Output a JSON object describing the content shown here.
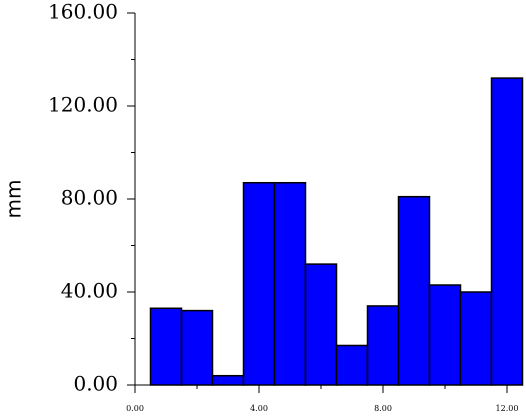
{
  "chart_data": {
    "type": "histogram",
    "y_label": "mm",
    "bins": [
      0.5,
      1.5,
      2.5,
      3.5,
      4.5,
      5.5,
      6.5,
      7.5,
      8.5,
      9.5,
      10.5,
      11.5,
      12.5
    ],
    "values": [
      33,
      32,
      4,
      87,
      87,
      52,
      17,
      34,
      81,
      43,
      40,
      132
    ],
    "color": "#0000ff",
    "xlim": [
      0,
      12.5
    ],
    "xticks": [
      {
        "value": 0,
        "label": "0.00"
      },
      {
        "value": 4,
        "label": "4.00"
      },
      {
        "value": 8,
        "label": "8.00"
      },
      {
        "value": 12,
        "label": "12.00"
      }
    ],
    "xminorticks": [
      2,
      6,
      10
    ],
    "ylim": [
      0,
      160
    ],
    "yticks": [
      {
        "value": 0,
        "label": "0.00"
      },
      {
        "value": 40,
        "label": "40.00"
      },
      {
        "value": 80,
        "label": "80.00"
      },
      {
        "value": 120,
        "label": "120.00"
      },
      {
        "value": 160,
        "label": "160.00"
      }
    ],
    "yminorticks": [
      20,
      60,
      100,
      140
    ]
  }
}
